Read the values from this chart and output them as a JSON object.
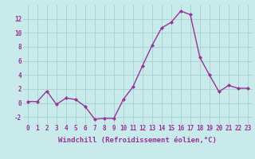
{
  "x": [
    0,
    1,
    2,
    3,
    4,
    5,
    6,
    7,
    8,
    9,
    10,
    11,
    12,
    13,
    14,
    15,
    16,
    17,
    18,
    19,
    20,
    21,
    22,
    23
  ],
  "y": [
    0.2,
    0.2,
    1.7,
    -0.2,
    0.7,
    0.5,
    -0.5,
    -2.3,
    -2.2,
    -2.2,
    0.5,
    2.3,
    5.3,
    8.2,
    10.7,
    11.5,
    13.1,
    12.6,
    6.5,
    4.0,
    1.6,
    2.5,
    2.1,
    2.1
  ],
  "line_color": "#993399",
  "marker": "D",
  "marker_size": 2.0,
  "bg_color": "#c8eaea",
  "grid_color": "#aad4d4",
  "xlabel": "Windchill (Refroidissement éolien,°C)",
  "xlabel_color": "#993399",
  "tick_color": "#993399",
  "ylim": [
    -3,
    14
  ],
  "yticks": [
    -2,
    0,
    2,
    4,
    6,
    8,
    10,
    12
  ],
  "xtick_labels": [
    "0",
    "1",
    "2",
    "3",
    "4",
    "5",
    "6",
    "7",
    "8",
    "9",
    "10",
    "11",
    "12",
    "13",
    "14",
    "15",
    "16",
    "17",
    "18",
    "19",
    "20",
    "21",
    "22",
    "23"
  ],
  "line_width": 1.0,
  "tick_fontsize": 5.5,
  "xlabel_fontsize": 6.5
}
